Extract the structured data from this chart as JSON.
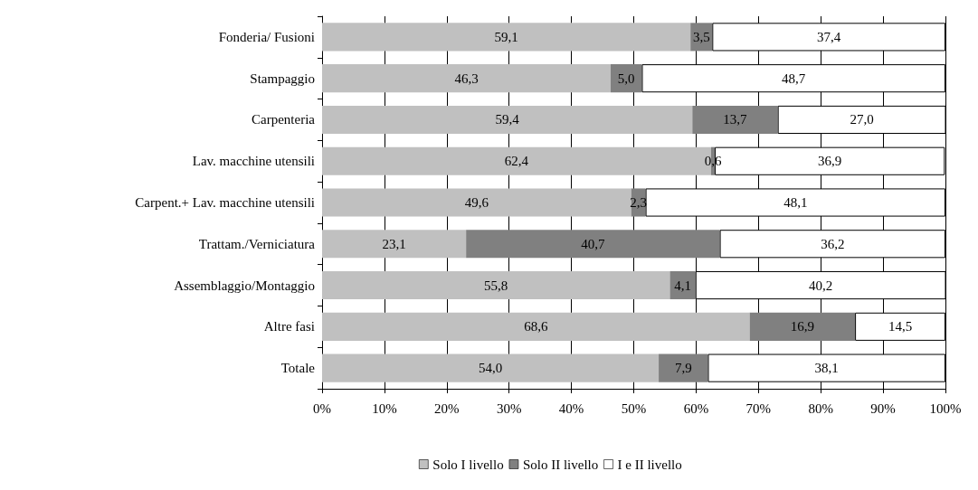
{
  "chart_data": {
    "type": "bar",
    "orientation": "horizontal",
    "stacked": true,
    "categories": [
      "Fonderia/ Fusioni",
      "Stampaggio",
      "Carpenteria",
      "Lav. macchine utensili",
      "Carpent.+ Lav. macchine utensili",
      "Trattam./Verniciatura",
      "Assemblaggio/Montaggio",
      "Altre fasi",
      "Totale"
    ],
    "series": [
      {
        "name": "Solo I livello",
        "color": "#c0c0c0",
        "values": [
          59.1,
          46.3,
          59.4,
          62.4,
          49.6,
          23.1,
          55.8,
          68.6,
          54.0
        ],
        "value_labels": [
          "59,1",
          "46,3",
          "59,4",
          "62,4",
          "49,6",
          "23,1",
          "55,8",
          "68,6",
          "54,0"
        ]
      },
      {
        "name": "Solo II livello",
        "color": "#808080",
        "values": [
          3.5,
          5.0,
          13.7,
          0.6,
          2.3,
          40.7,
          4.1,
          16.9,
          7.9
        ],
        "value_labels": [
          "3,5",
          "5,0",
          "13,7",
          "0,6",
          "2,3",
          "40,7",
          "4,1",
          "16,9",
          "7,9"
        ]
      },
      {
        "name": "I e II livello",
        "color": "#ffffff",
        "values": [
          37.4,
          48.7,
          27.0,
          36.9,
          48.1,
          36.2,
          40.2,
          14.5,
          38.1
        ],
        "value_labels": [
          "37,4",
          "48,7",
          "27,0",
          "36,9",
          "48,1",
          "36,2",
          "40,2",
          "14,5",
          "38,1"
        ]
      }
    ],
    "xlim": [
      0,
      100
    ],
    "xticks": [
      {
        "value": 0,
        "label": "0%"
      },
      {
        "value": 10,
        "label": "10%"
      },
      {
        "value": 20,
        "label": "20%"
      },
      {
        "value": 30,
        "label": "30%"
      },
      {
        "value": 40,
        "label": "40%"
      },
      {
        "value": 50,
        "label": "50%"
      },
      {
        "value": 60,
        "label": "60%"
      },
      {
        "value": 70,
        "label": "70%"
      },
      {
        "value": 80,
        "label": "80%"
      },
      {
        "value": 90,
        "label": "90%"
      },
      {
        "value": 100,
        "label": "100%"
      }
    ],
    "grid": "x",
    "legend": "bottom"
  }
}
